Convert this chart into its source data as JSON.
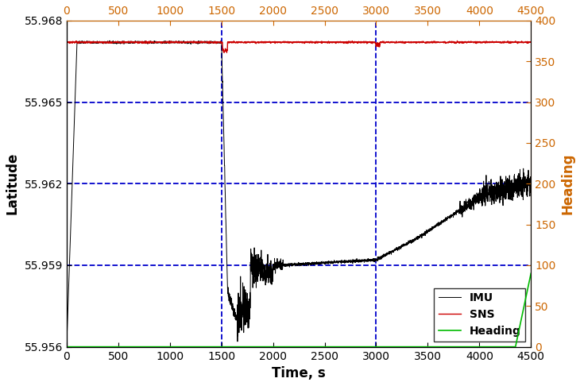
{
  "title": "",
  "xlabel": "Time, s",
  "ylabel_left": "Latitude",
  "ylabel_right": "Heading",
  "xlim": [
    0,
    4500
  ],
  "ylim_lat": [
    55.956,
    55.968
  ],
  "ylim_heading": [
    0,
    400
  ],
  "yticks_lat": [
    55.956,
    55.959,
    55.962,
    55.965,
    55.968
  ],
  "yticks_heading": [
    0,
    50,
    100,
    150,
    200,
    250,
    300,
    350,
    400
  ],
  "xticks_bottom": [
    0,
    500,
    1000,
    1500,
    2000,
    2500,
    3000,
    3500,
    4000,
    4500
  ],
  "xticks_top": [
    0,
    500,
    1000,
    1500,
    2000,
    2500,
    3000,
    3500,
    4000,
    4500
  ],
  "grid_color": "#0000cc",
  "grid_linestyle": "--",
  "grid_linewidth": 1.3,
  "imu_color": "#000000",
  "sns_color": "#cc0000",
  "heading_color": "#00bb00",
  "legend_loc": "lower right",
  "sns_lat_value": 55.9672,
  "right_axis_color": "#cc6600",
  "top_axis_color": "#cc6600",
  "tick_label_fontsize": 10,
  "axis_label_fontsize": 12
}
